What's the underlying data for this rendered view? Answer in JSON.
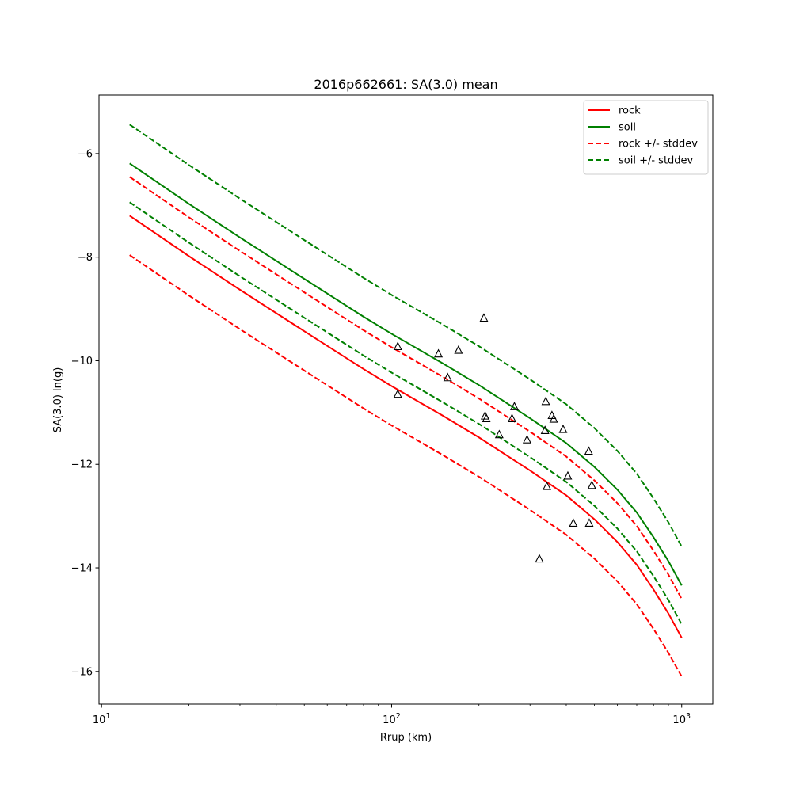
{
  "chart_data": {
    "type": "line",
    "title": "2016p662661: SA(3.0) mean",
    "xlabel": "Rrup (km)",
    "ylabel": "SA(3.0) ln(g)",
    "x_scale": "log",
    "xlim": [
      9.8,
      1280
    ],
    "ylim": [
      -16.63,
      -4.87
    ],
    "grid": false,
    "legend_placement": "top-right",
    "x_ticks": [
      {
        "value": 10,
        "base": "10",
        "exp": "1"
      },
      {
        "value": 100,
        "base": "10",
        "exp": "2"
      },
      {
        "value": 1000,
        "base": "10",
        "exp": "3"
      }
    ],
    "y_ticks": [
      {
        "value": -6,
        "label": "−6"
      },
      {
        "value": -8,
        "label": "−8"
      },
      {
        "value": -10,
        "label": "−10"
      },
      {
        "value": -12,
        "label": "−12"
      },
      {
        "value": -14,
        "label": "−14"
      },
      {
        "value": -16,
        "label": "−16"
      }
    ],
    "series": [
      {
        "name": "rock",
        "color": "#ff0000",
        "dash": false,
        "x": [
          12.5,
          20,
          30,
          50,
          80,
          100,
          150,
          200,
          300,
          400,
          500,
          600,
          700,
          800,
          900,
          1000
        ],
        "y": [
          -7.2,
          -7.98,
          -8.63,
          -9.43,
          -10.16,
          -10.49,
          -11.06,
          -11.48,
          -12.12,
          -12.6,
          -13.06,
          -13.5,
          -13.94,
          -14.42,
          -14.88,
          -15.35
        ]
      },
      {
        "name": "soil",
        "color": "#008000",
        "dash": false,
        "x": [
          12.5,
          20,
          30,
          50,
          80,
          100,
          150,
          200,
          300,
          400,
          500,
          600,
          700,
          800,
          900,
          1000
        ],
        "y": [
          -6.19,
          -6.97,
          -7.62,
          -8.42,
          -9.15,
          -9.48,
          -10.05,
          -10.47,
          -11.11,
          -11.59,
          -12.05,
          -12.49,
          -12.93,
          -13.41,
          -13.87,
          -14.34
        ]
      },
      {
        "name": "rock +/- stddev",
        "color": "#ff0000",
        "dash": true,
        "x": [
          12.5,
          20,
          30,
          50,
          80,
          100,
          150,
          200,
          300,
          400,
          500,
          600,
          700,
          800,
          900,
          1000
        ],
        "y": [
          -6.45,
          -7.23,
          -7.88,
          -8.68,
          -9.41,
          -9.74,
          -10.31,
          -10.73,
          -11.37,
          -11.85,
          -12.31,
          -12.75,
          -13.19,
          -13.67,
          -14.13,
          -14.6
        ]
      },
      {
        "name": "",
        "color": "#ff0000",
        "dash": true,
        "x": [
          12.5,
          20,
          30,
          50,
          80,
          100,
          150,
          200,
          300,
          400,
          500,
          600,
          700,
          800,
          900,
          1000
        ],
        "y": [
          -7.96,
          -8.74,
          -9.39,
          -10.19,
          -10.92,
          -11.25,
          -11.82,
          -12.24,
          -12.88,
          -13.36,
          -13.82,
          -14.26,
          -14.7,
          -15.18,
          -15.64,
          -16.1
        ]
      },
      {
        "name": "soil +/- stddev",
        "color": "#008000",
        "dash": true,
        "x": [
          12.5,
          20,
          30,
          50,
          80,
          100,
          150,
          200,
          300,
          400,
          500,
          600,
          700,
          800,
          900,
          1000
        ],
        "y": [
          -5.44,
          -6.22,
          -6.87,
          -7.67,
          -8.4,
          -8.73,
          -9.3,
          -9.72,
          -10.36,
          -10.84,
          -11.3,
          -11.74,
          -12.18,
          -12.66,
          -13.12,
          -13.59
        ]
      },
      {
        "name": "",
        "color": "#008000",
        "dash": true,
        "x": [
          12.5,
          20,
          30,
          50,
          80,
          100,
          150,
          200,
          300,
          400,
          500,
          600,
          700,
          800,
          900,
          1000
        ],
        "y": [
          -6.94,
          -7.72,
          -8.37,
          -9.17,
          -9.9,
          -10.23,
          -10.8,
          -11.22,
          -11.86,
          -12.34,
          -12.8,
          -13.24,
          -13.68,
          -14.16,
          -14.62,
          -15.09
        ]
      }
    ],
    "observations": [
      {
        "x": 105,
        "y": -9.73
      },
      {
        "x": 105,
        "y": -10.65
      },
      {
        "x": 145,
        "y": -9.87
      },
      {
        "x": 156,
        "y": -10.33
      },
      {
        "x": 170,
        "y": -9.8
      },
      {
        "x": 208,
        "y": -9.18
      },
      {
        "x": 210,
        "y": -11.07
      },
      {
        "x": 212,
        "y": -11.12
      },
      {
        "x": 235,
        "y": -11.43
      },
      {
        "x": 260,
        "y": -11.12
      },
      {
        "x": 265,
        "y": -10.89
      },
      {
        "x": 293,
        "y": -11.53
      },
      {
        "x": 323,
        "y": -13.83
      },
      {
        "x": 338,
        "y": -11.35
      },
      {
        "x": 340,
        "y": -10.79
      },
      {
        "x": 343,
        "y": -12.43
      },
      {
        "x": 357,
        "y": -11.06
      },
      {
        "x": 362,
        "y": -11.13
      },
      {
        "x": 390,
        "y": -11.33
      },
      {
        "x": 405,
        "y": -12.23
      },
      {
        "x": 423,
        "y": -13.14
      },
      {
        "x": 478,
        "y": -11.75
      },
      {
        "x": 480,
        "y": -13.14
      },
      {
        "x": 490,
        "y": -12.41
      }
    ]
  }
}
